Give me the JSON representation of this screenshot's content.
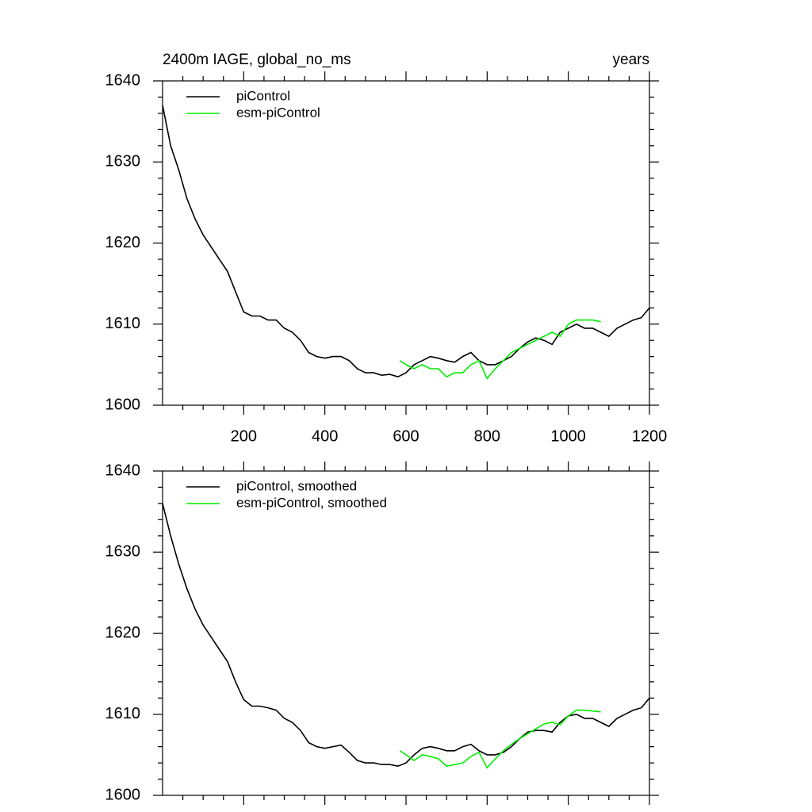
{
  "chart_data": [
    {
      "type": "line",
      "title": "2400m IAGE, global_no_ms",
      "right_title": "years",
      "xlim": [
        0,
        1200
      ],
      "xticks": [
        200,
        400,
        600,
        800,
        1000,
        1200
      ],
      "xtick_labels": true,
      "ylim": [
        1600,
        1640
      ],
      "yticks": [
        1600,
        1610,
        1620,
        1630,
        1640
      ],
      "legend": "top-left",
      "series": [
        {
          "name": "piControl",
          "color": "#000000",
          "x": [
            0,
            20,
            40,
            60,
            80,
            100,
            120,
            140,
            160,
            180,
            200,
            220,
            240,
            260,
            280,
            300,
            320,
            340,
            360,
            380,
            400,
            420,
            440,
            460,
            480,
            500,
            520,
            540,
            560,
            580,
            600,
            620,
            640,
            660,
            680,
            700,
            720,
            740,
            760,
            780,
            800,
            820,
            840,
            860,
            880,
            900,
            920,
            940,
            960,
            980,
            1000,
            1020,
            1040,
            1060,
            1080,
            1100,
            1120,
            1140,
            1160,
            1180,
            1200
          ],
          "values": [
            1637,
            1632,
            1629,
            1625.5,
            1623,
            1621,
            1619.5,
            1618,
            1616.5,
            1614,
            1611.5,
            1611,
            1611,
            1610.5,
            1610.5,
            1609.5,
            1609,
            1608,
            1606.5,
            1606,
            1605.8,
            1606,
            1606,
            1605.5,
            1604.5,
            1604,
            1604,
            1603.7,
            1603.8,
            1603.5,
            1604,
            1605,
            1605.5,
            1606,
            1605.8,
            1605.5,
            1605.3,
            1606,
            1606.5,
            1605.5,
            1605,
            1605,
            1605.5,
            1606,
            1607,
            1607.8,
            1608.3,
            1608,
            1607.5,
            1609,
            1609.5,
            1610,
            1609.5,
            1609.5,
            1609,
            1608.5,
            1609.5,
            1610,
            1610.5,
            1610.8,
            1612
          ]
        },
        {
          "name": "esm-piControl",
          "color": "#00ee00",
          "x": [
            585,
            600,
            620,
            640,
            660,
            680,
            700,
            720,
            740,
            760,
            780,
            800,
            820,
            840,
            860,
            880,
            900,
            920,
            940,
            960,
            980,
            1000,
            1020,
            1040,
            1060,
            1080
          ],
          "values": [
            1605.5,
            1605,
            1604.5,
            1605,
            1604.5,
            1604.5,
            1603.5,
            1604,
            1604,
            1605,
            1605.5,
            1603.3,
            1604.5,
            1605.5,
            1606.5,
            1607,
            1607.5,
            1608,
            1608.5,
            1609,
            1608.5,
            1610,
            1610.5,
            1610.5,
            1610.5,
            1610.3
          ]
        }
      ]
    },
    {
      "type": "line",
      "xlim": [
        0,
        1200
      ],
      "xticks": [
        200,
        400,
        600,
        800,
        1000,
        1200
      ],
      "xtick_labels": false,
      "ylim": [
        1600,
        1640
      ],
      "yticks": [
        1600,
        1610,
        1620,
        1630,
        1640
      ],
      "legend": "top-left",
      "series": [
        {
          "name": "piControl, smoothed",
          "color": "#000000",
          "x": [
            0,
            20,
            40,
            60,
            80,
            100,
            120,
            140,
            160,
            180,
            200,
            220,
            240,
            260,
            280,
            300,
            320,
            340,
            360,
            380,
            400,
            420,
            440,
            460,
            480,
            500,
            520,
            540,
            560,
            580,
            600,
            620,
            640,
            660,
            680,
            700,
            720,
            740,
            760,
            780,
            800,
            820,
            840,
            860,
            880,
            900,
            920,
            940,
            960,
            980,
            1000,
            1020,
            1040,
            1060,
            1080,
            1100,
            1120,
            1140,
            1160,
            1180,
            1200
          ],
          "values": [
            1636,
            1632,
            1628.5,
            1625.5,
            1623,
            1621,
            1619.5,
            1618,
            1616.5,
            1614,
            1611.8,
            1611,
            1611,
            1610.8,
            1610.5,
            1609.5,
            1609,
            1608,
            1606.5,
            1606,
            1605.8,
            1606,
            1606.2,
            1605.3,
            1604.3,
            1604,
            1604,
            1603.8,
            1603.8,
            1603.6,
            1604,
            1605,
            1605.8,
            1606,
            1605.8,
            1605.5,
            1605.5,
            1606,
            1606.3,
            1605.5,
            1605,
            1605,
            1605.3,
            1606,
            1607,
            1607.8,
            1608,
            1608,
            1607.8,
            1609,
            1609.8,
            1610,
            1609.5,
            1609.5,
            1609,
            1608.5,
            1609.5,
            1610,
            1610.5,
            1610.8,
            1612
          ]
        },
        {
          "name": "esm-piControl, smoothed",
          "color": "#00ee00",
          "x": [
            585,
            600,
            620,
            640,
            660,
            680,
            700,
            720,
            740,
            760,
            780,
            800,
            820,
            840,
            860,
            880,
            900,
            920,
            940,
            960,
            980,
            1000,
            1020,
            1040,
            1060,
            1080
          ],
          "values": [
            1605.5,
            1605,
            1604.3,
            1605,
            1604.8,
            1604.5,
            1603.6,
            1603.8,
            1604,
            1604.8,
            1605.3,
            1603.4,
            1604.5,
            1605.5,
            1606.3,
            1607,
            1607.6,
            1608.2,
            1608.8,
            1609,
            1608.7,
            1609.8,
            1610.5,
            1610.5,
            1610.4,
            1610.3
          ]
        }
      ]
    }
  ]
}
